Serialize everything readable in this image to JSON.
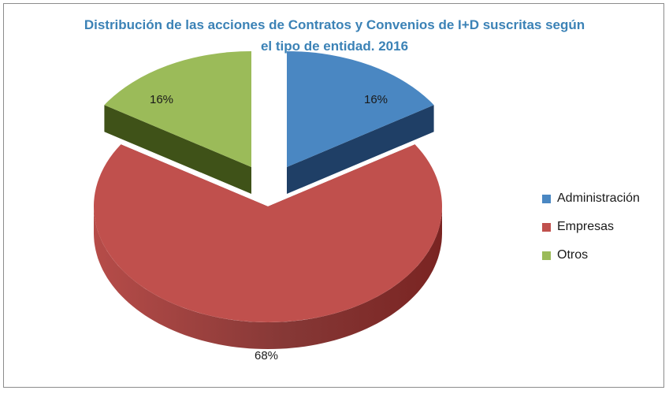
{
  "chart_data": {
    "type": "pie",
    "title_lines": [
      "Distribución de las acciones de Contratos y Convenios de I+D suscritas según",
      "el tipo de entidad. 2016"
    ],
    "categories": [
      "Administración",
      "Empresas",
      "Otros"
    ],
    "values": [
      16,
      68,
      16
    ],
    "labels": [
      "16%",
      "68%",
      "16%"
    ],
    "unit": "%",
    "style": "3d-exploded",
    "legend_position": "right",
    "colors": {
      "Administración": {
        "top": "#4a87c2",
        "side": "#1f3f66"
      },
      "Empresas": {
        "top": "#c0504d",
        "side": "#7a2422"
      },
      "Otros": {
        "top": "#9bbb59",
        "side": "#3f5218"
      }
    },
    "title_color": "#3b82b6"
  }
}
